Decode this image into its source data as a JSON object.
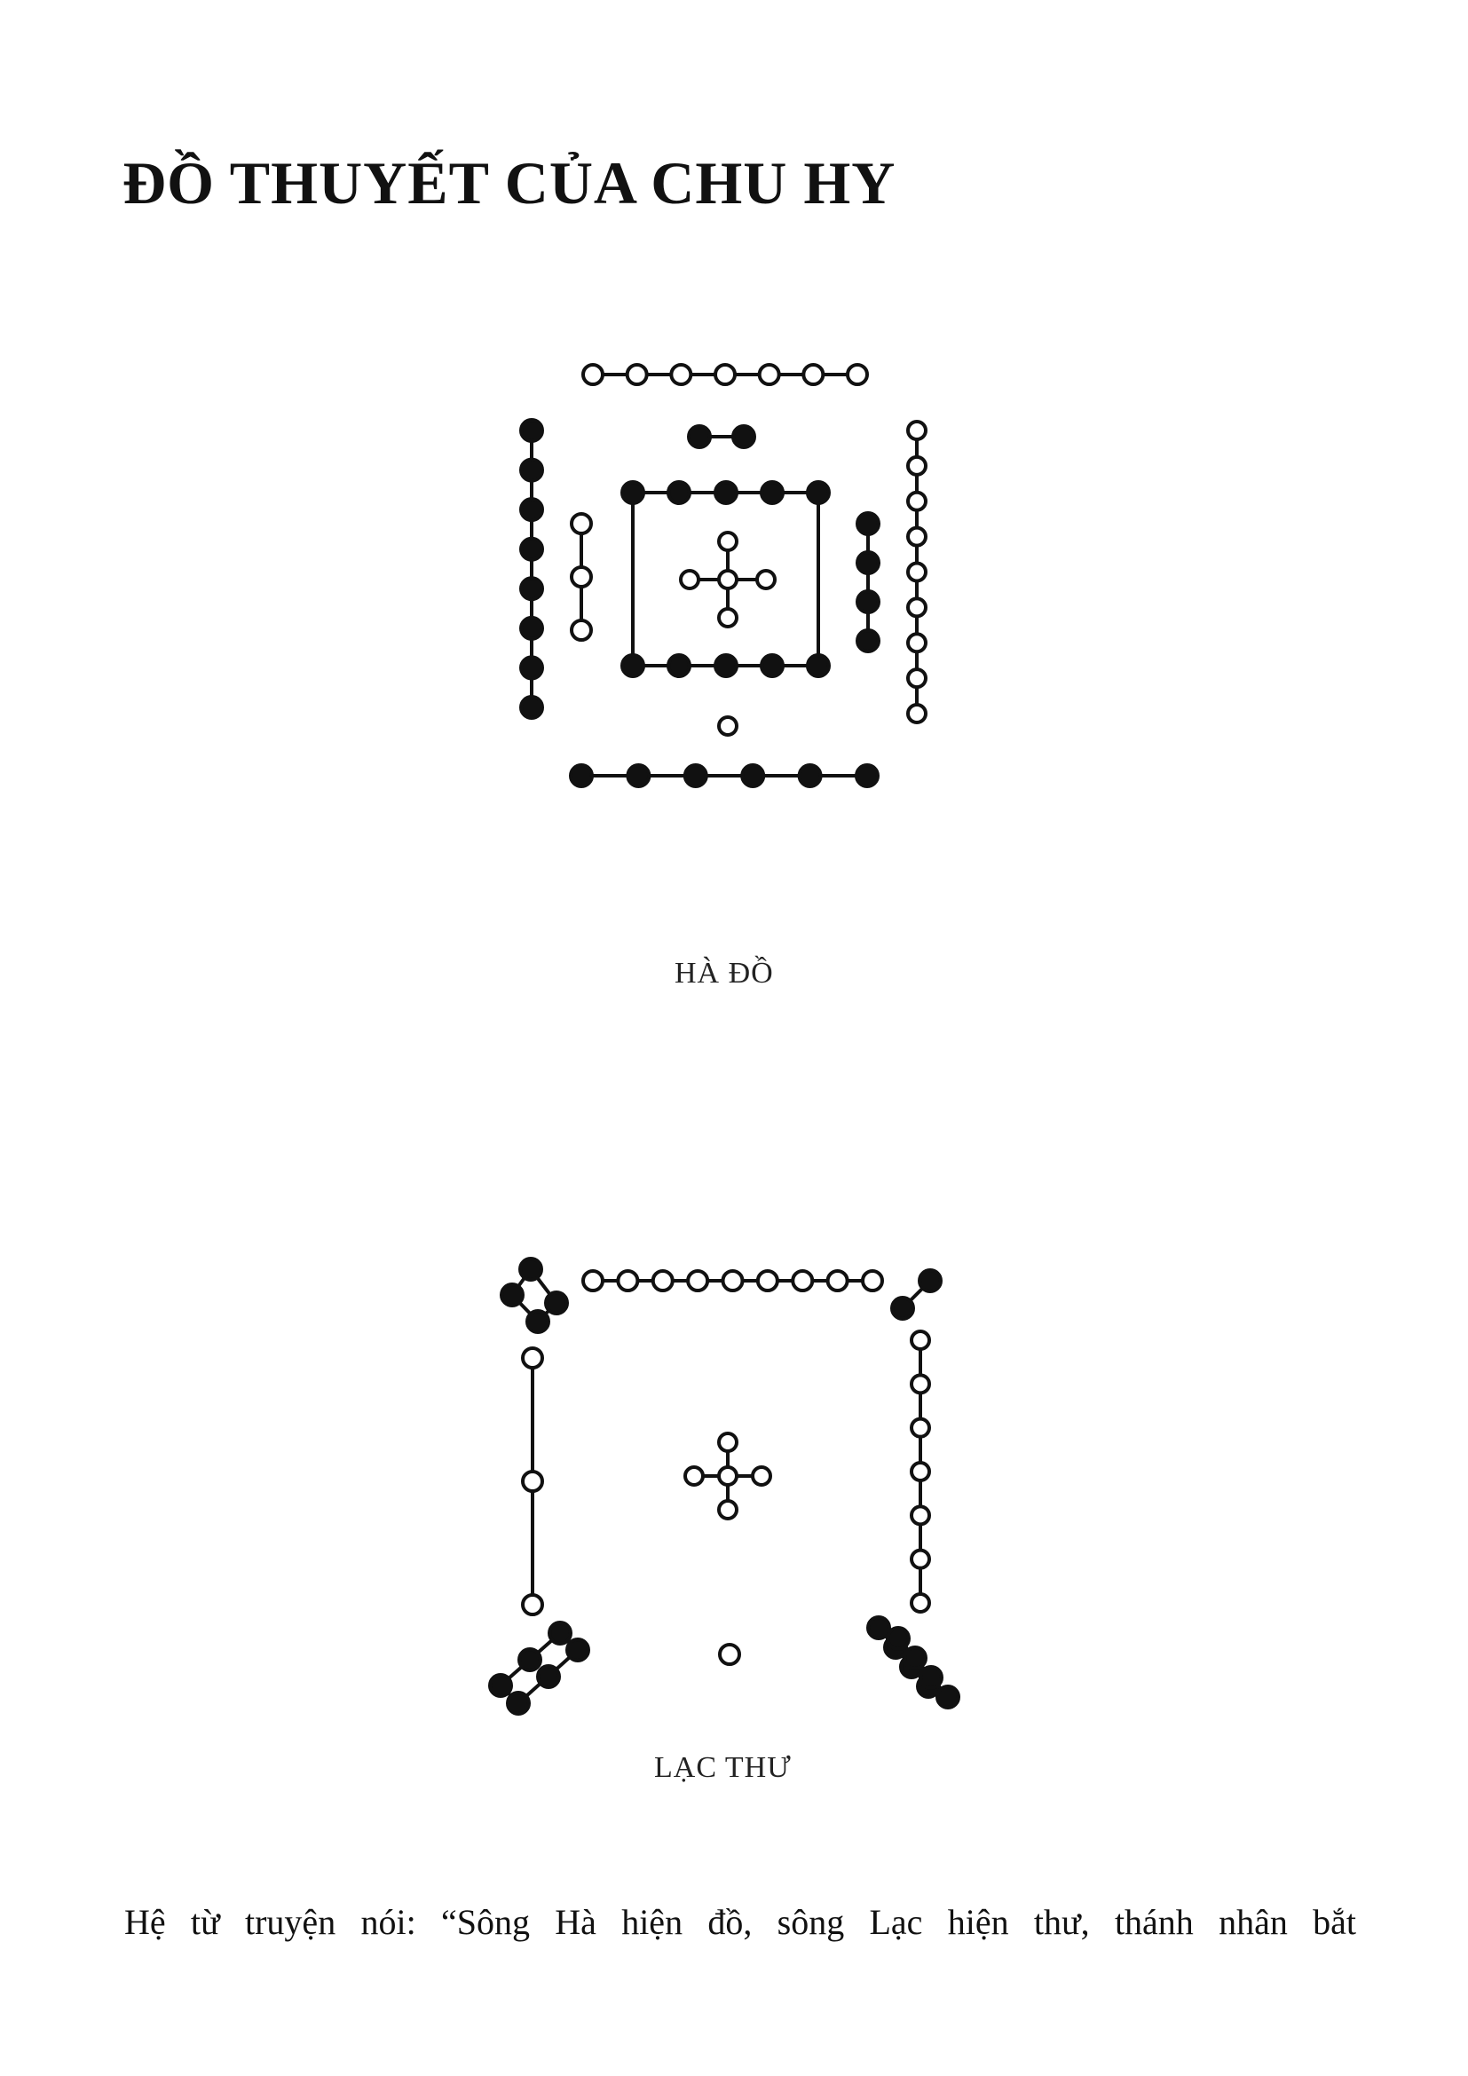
{
  "title": "ĐỒ THUYẾT CỦA CHU HY",
  "diagrams": {
    "ha_do": {
      "caption": "HÀ ĐỒ"
    },
    "lac_thu": {
      "caption": "LẠC THƯ"
    }
  },
  "paragraph": "Hệ từ truyện nói: “Sông Hà hiện đồ, sông Lạc hiện thư, thánh nhân bắt"
}
